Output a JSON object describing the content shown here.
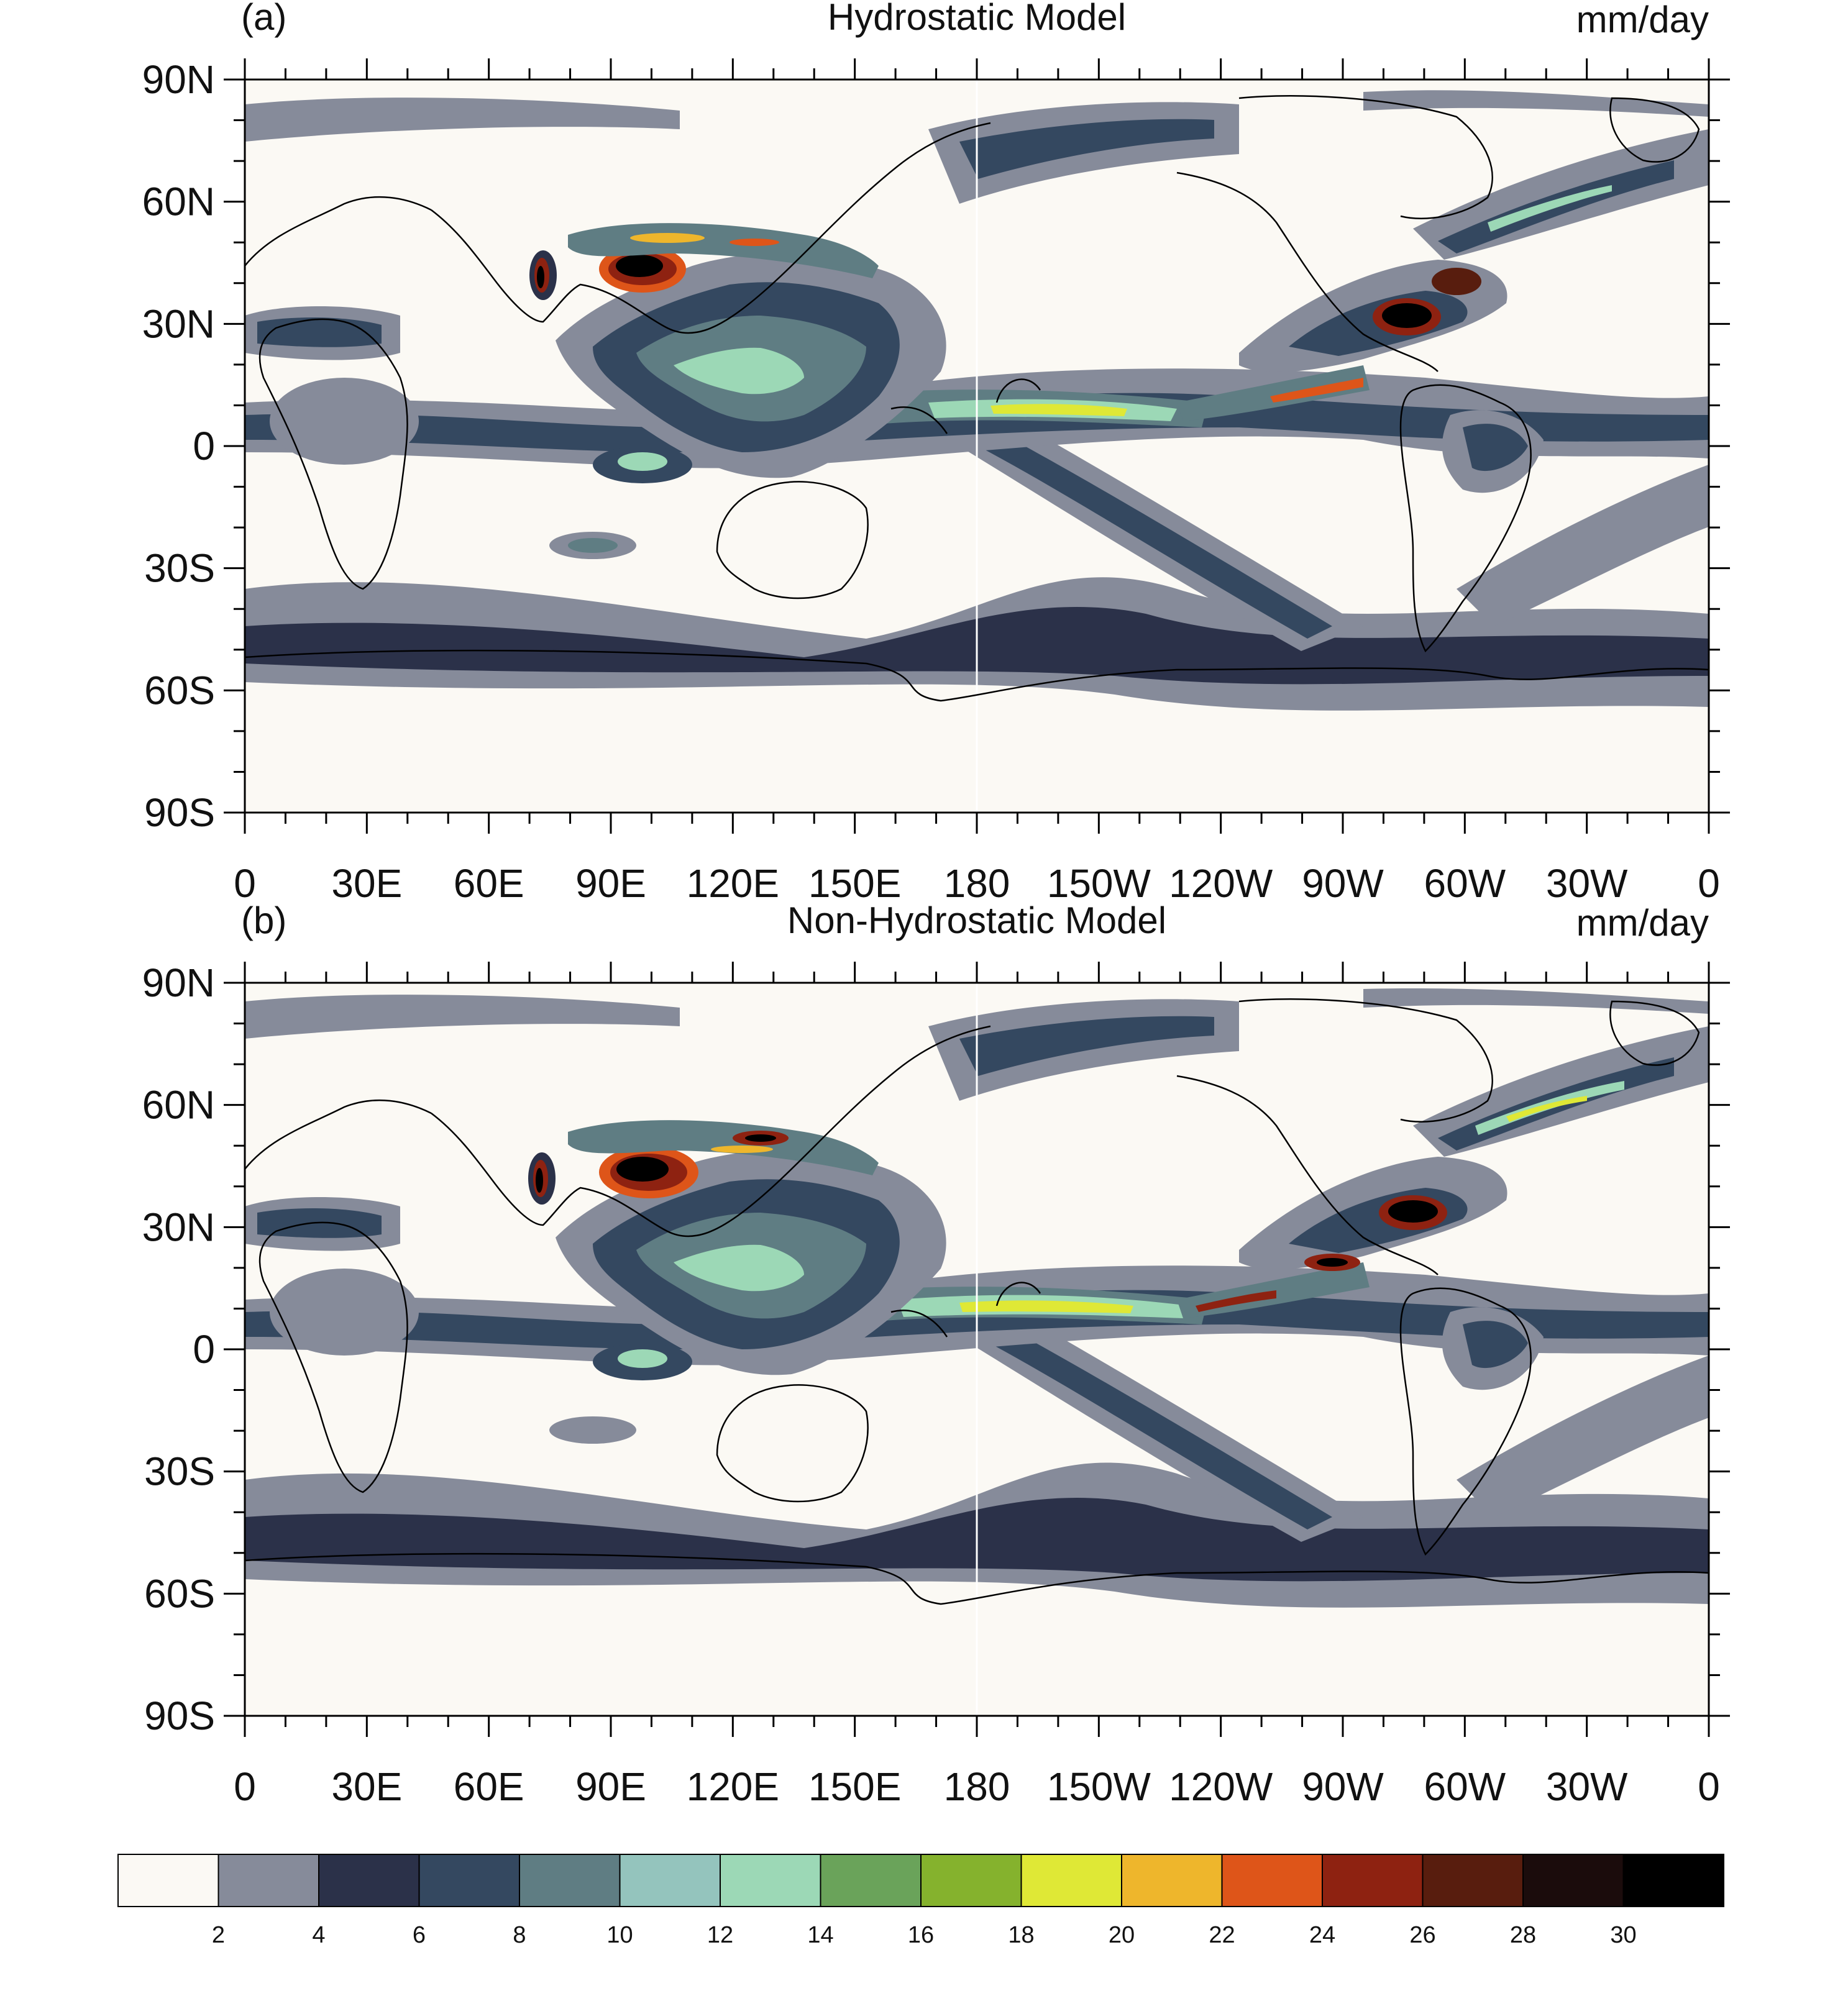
{
  "panels": [
    {
      "id": "a",
      "label": "(a)",
      "title": "Hydrostatic Model",
      "units": "mm/day"
    },
    {
      "id": "b",
      "label": "(b)",
      "title": "Non-Hydrostatic Model",
      "units": "mm/day"
    }
  ],
  "lat_ticks": [
    "90N",
    "60N",
    "30N",
    "0",
    "30S",
    "60S",
    "90S"
  ],
  "lon_ticks": [
    "0",
    "30E",
    "60E",
    "90E",
    "120E",
    "150E",
    "180",
    "150W",
    "120W",
    "90W",
    "60W",
    "30W",
    "0"
  ],
  "colorbar": {
    "levels": [
      "2",
      "4",
      "6",
      "8",
      "10",
      "12",
      "14",
      "16",
      "18",
      "20",
      "22",
      "24",
      "26",
      "28",
      "30"
    ],
    "colors": [
      "#fbf9f4",
      "#868b9a",
      "#2b3149",
      "#344860",
      "#5f7d83",
      "#94c4bd",
      "#9cd8b6",
      "#6aa35a",
      "#85b22d",
      "#dfe836",
      "#eeb62c",
      "#de5519",
      "#8e2211",
      "#581d0e",
      "#1b0c0c",
      "#000000"
    ]
  }
}
